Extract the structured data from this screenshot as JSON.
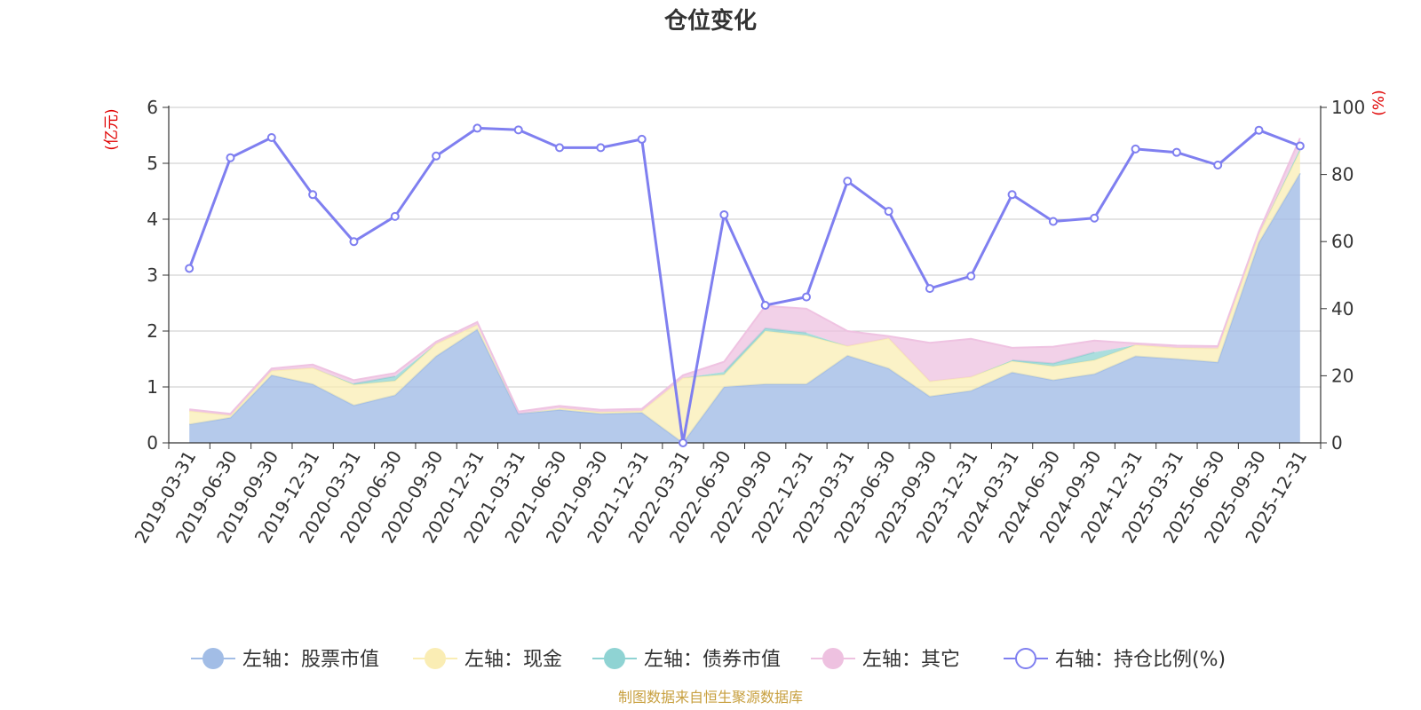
{
  "chart_data": {
    "type": "area",
    "title": "仓位变化",
    "left_axis_unit": "(亿元)",
    "right_axis_unit": "(%)",
    "ylim_left": [
      0,
      6
    ],
    "ylim_right": [
      0,
      100
    ],
    "y_ticks_left": [
      "0",
      "1",
      "2",
      "3",
      "4",
      "5",
      "6"
    ],
    "y_ticks_right": [
      "0",
      "20",
      "40",
      "60",
      "80",
      "100"
    ],
    "grid": true,
    "legend_position": "bottom",
    "categories": [
      "2019-03-31",
      "2019-06-30",
      "2019-09-30",
      "2019-12-31",
      "2020-03-31",
      "2020-06-30",
      "2020-09-30",
      "2020-12-31",
      "2021-03-31",
      "2021-06-30",
      "2021-09-30",
      "2021-12-31",
      "2022-03-31",
      "2022-06-30",
      "2022-09-30",
      "2022-12-31",
      "2023-03-31",
      "2023-06-30",
      "2023-09-30",
      "2023-12-31",
      "2024-03-31",
      "2024-06-30",
      "2024-09-30",
      "2024-12-31",
      "2025-03-31",
      "2025-06-30",
      "2025-09-30",
      "2025-12-31"
    ],
    "series": [
      {
        "name": "左轴：股票市值",
        "axis": "left",
        "stacked": true,
        "color": "#a2bde6",
        "values": [
          0.33,
          0.45,
          1.21,
          1.05,
          0.67,
          0.85,
          1.55,
          2.03,
          0.52,
          0.59,
          0.52,
          0.54,
          0.0,
          1.0,
          1.05,
          1.05,
          1.56,
          1.33,
          0.83,
          0.93,
          1.26,
          1.12,
          1.23,
          1.55,
          1.5,
          1.44,
          3.58,
          4.82
        ]
      },
      {
        "name": "左轴：现金",
        "axis": "left",
        "stacked": true,
        "color": "#faedb4",
        "values": [
          0.24,
          0.04,
          0.08,
          0.29,
          0.37,
          0.26,
          0.22,
          0.08,
          0.0,
          0.03,
          0.03,
          0.03,
          1.16,
          0.22,
          0.95,
          0.87,
          0.17,
          0.54,
          0.27,
          0.25,
          0.2,
          0.25,
          0.25,
          0.2,
          0.2,
          0.25,
          0.15,
          0.4
        ]
      },
      {
        "name": "左轴：债券市值",
        "axis": "left",
        "stacked": true,
        "color": "#8fd3d3",
        "values": [
          0,
          0,
          0,
          0,
          0.02,
          0.08,
          0,
          0,
          0,
          0,
          0,
          0,
          0,
          0.05,
          0.05,
          0.05,
          0,
          0,
          0,
          0,
          0.02,
          0.05,
          0.14,
          0,
          0,
          0,
          0,
          0.05
        ]
      },
      {
        "name": "左轴：其它",
        "axis": "left",
        "stacked": true,
        "color": "#eec1e0",
        "values": [
          0.03,
          0.03,
          0.04,
          0.06,
          0.06,
          0.06,
          0.04,
          0.05,
          0.04,
          0.04,
          0.04,
          0.04,
          0.05,
          0.18,
          0.4,
          0.43,
          0.27,
          0.04,
          0.69,
          0.68,
          0.22,
          0.3,
          0.21,
          0.03,
          0.04,
          0.04,
          0.05,
          0.18
        ]
      },
      {
        "name": "右轴：持仓比例(%)",
        "axis": "right",
        "type": "line",
        "color": "#7f7ff0",
        "values": [
          52,
          85,
          91,
          74,
          60,
          67.5,
          85.5,
          93.8,
          93.3,
          88,
          88,
          90.5,
          0,
          68,
          41,
          43.5,
          78,
          69,
          46,
          49.7,
          74,
          66,
          67,
          87.6,
          86.6,
          82.8,
          93.2,
          88.5
        ]
      }
    ],
    "source_note": "制图数据来自恒生聚源数据库"
  }
}
